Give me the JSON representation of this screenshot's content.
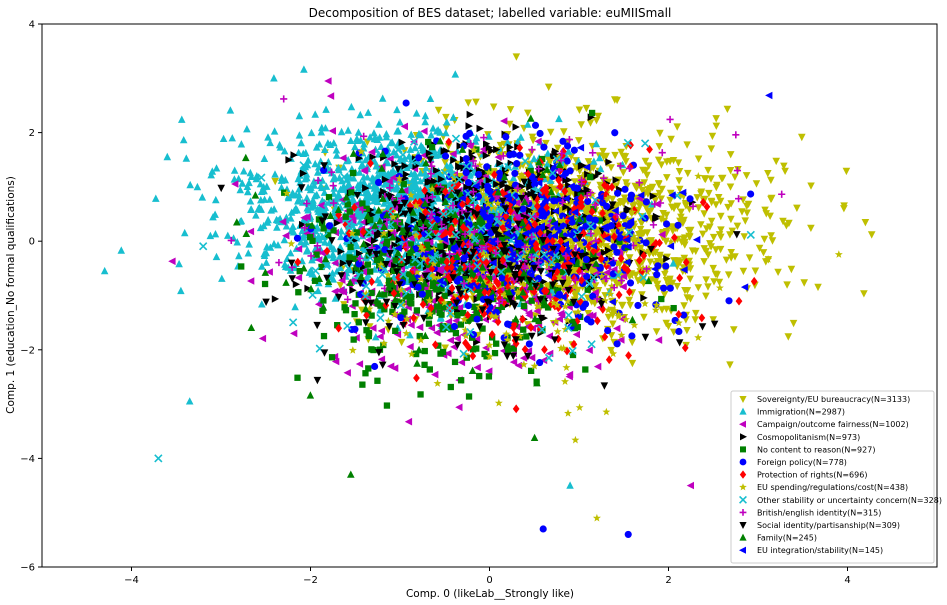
{
  "chart_data": {
    "type": "scatter",
    "title": "Decomposition of BES dataset; labelled variable: euMIISmall",
    "xlabel": "Comp. 0 (likeLab__Strongly like)",
    "ylabel": "Comp. 1 (education_No formal qualifications)",
    "xlim": [
      -5,
      5
    ],
    "ylim": [
      -6,
      4
    ],
    "xticks": [
      -4,
      -2,
      0,
      2,
      4
    ],
    "yticks": [
      -6,
      -4,
      -2,
      0,
      2,
      4
    ],
    "grid": false,
    "legend_position": "bottom-right",
    "series": [
      {
        "name": "Sovereignty/EU bureaucracy(N=3133)",
        "n": 3133,
        "color": "#bfbf00",
        "marker": "triangle-down",
        "center": [
          0.9,
          0.2
        ],
        "spread": [
          1.05,
          0.85
        ]
      },
      {
        "name": "Immigration(N=2987)",
        "n": 2987,
        "color": "#17becf",
        "marker": "triangle-up",
        "center": [
          -1.0,
          0.55
        ],
        "spread": [
          0.9,
          0.75
        ]
      },
      {
        "name": "Campaign/outcome fairness(N=1002)",
        "n": 1002,
        "color": "#bf00bf",
        "marker": "triangle-left",
        "center": [
          -0.3,
          -0.4
        ],
        "spread": [
          0.95,
          0.95
        ]
      },
      {
        "name": "Cosmopolitanism(N=973)",
        "n": 973,
        "color": "#000000",
        "marker": "triangle-right",
        "center": [
          0.0,
          0.3
        ],
        "spread": [
          0.8,
          0.8
        ]
      },
      {
        "name": "No content to reason(N=927)",
        "n": 927,
        "color": "#008000",
        "marker": "square",
        "center": [
          -0.35,
          -0.6
        ],
        "spread": [
          0.9,
          0.95
        ]
      },
      {
        "name": "Foreign policy(N=778)",
        "n": 778,
        "color": "#0000ff",
        "marker": "circle",
        "center": [
          0.35,
          0.05
        ],
        "spread": [
          0.85,
          0.85
        ]
      },
      {
        "name": "Protection of rights(N=696)",
        "n": 696,
        "color": "#ff0000",
        "marker": "diamond",
        "center": [
          0.3,
          -0.3
        ],
        "spread": [
          0.9,
          0.95
        ]
      },
      {
        "name": "EU spending/regulations/cost(N=438)",
        "n": 438,
        "color": "#bfbf00",
        "marker": "star",
        "center": [
          0.3,
          -0.5
        ],
        "spread": [
          0.95,
          1.0
        ]
      },
      {
        "name": "Other stability or uncertainty concern(N=328)",
        "n": 328,
        "color": "#17becf",
        "marker": "x",
        "center": [
          -0.3,
          0.0
        ],
        "spread": [
          0.95,
          0.95
        ]
      },
      {
        "name": "British/english identity(N=315)",
        "n": 315,
        "color": "#bf00bf",
        "marker": "plus",
        "center": [
          0.2,
          0.3
        ],
        "spread": [
          1.1,
          0.85
        ]
      },
      {
        "name": "Social identity/partisanship(N=309)",
        "n": 309,
        "color": "#000000",
        "marker": "triangle-down",
        "center": [
          -0.2,
          -0.3
        ],
        "spread": [
          0.95,
          1.0
        ]
      },
      {
        "name": "Family(N=245)",
        "n": 245,
        "color": "#008000",
        "marker": "triangle-up",
        "center": [
          -0.5,
          -0.3
        ],
        "spread": [
          0.95,
          1.0
        ]
      },
      {
        "name": "EU integration/stability(N=145)",
        "n": 145,
        "color": "#0000ff",
        "marker": "triangle-left",
        "center": [
          0.8,
          0.2
        ],
        "spread": [
          0.9,
          0.75
        ]
      }
    ],
    "visible_outliers": [
      {
        "series": 0,
        "x": 0.3,
        "y": 3.4
      },
      {
        "series": 0,
        "x": 4.2,
        "y": 0.35
      },
      {
        "series": 1,
        "x": -4.3,
        "y": -0.55
      },
      {
        "series": 1,
        "x": -3.6,
        "y": 1.55
      },
      {
        "series": 1,
        "x": -3.35,
        "y": -2.95
      },
      {
        "series": 1,
        "x": 0.9,
        "y": -4.5
      },
      {
        "series": 2,
        "x": -1.8,
        "y": 2.95
      },
      {
        "series": 2,
        "x": 2.25,
        "y": -4.5
      },
      {
        "series": 5,
        "x": 0.6,
        "y": -5.3
      },
      {
        "series": 5,
        "x": 1.55,
        "y": -5.4
      },
      {
        "series": 7,
        "x": 1.2,
        "y": -5.1
      },
      {
        "series": 8,
        "x": -3.7,
        "y": -4.0
      },
      {
        "series": 11,
        "x": -1.55,
        "y": -4.3
      }
    ]
  }
}
